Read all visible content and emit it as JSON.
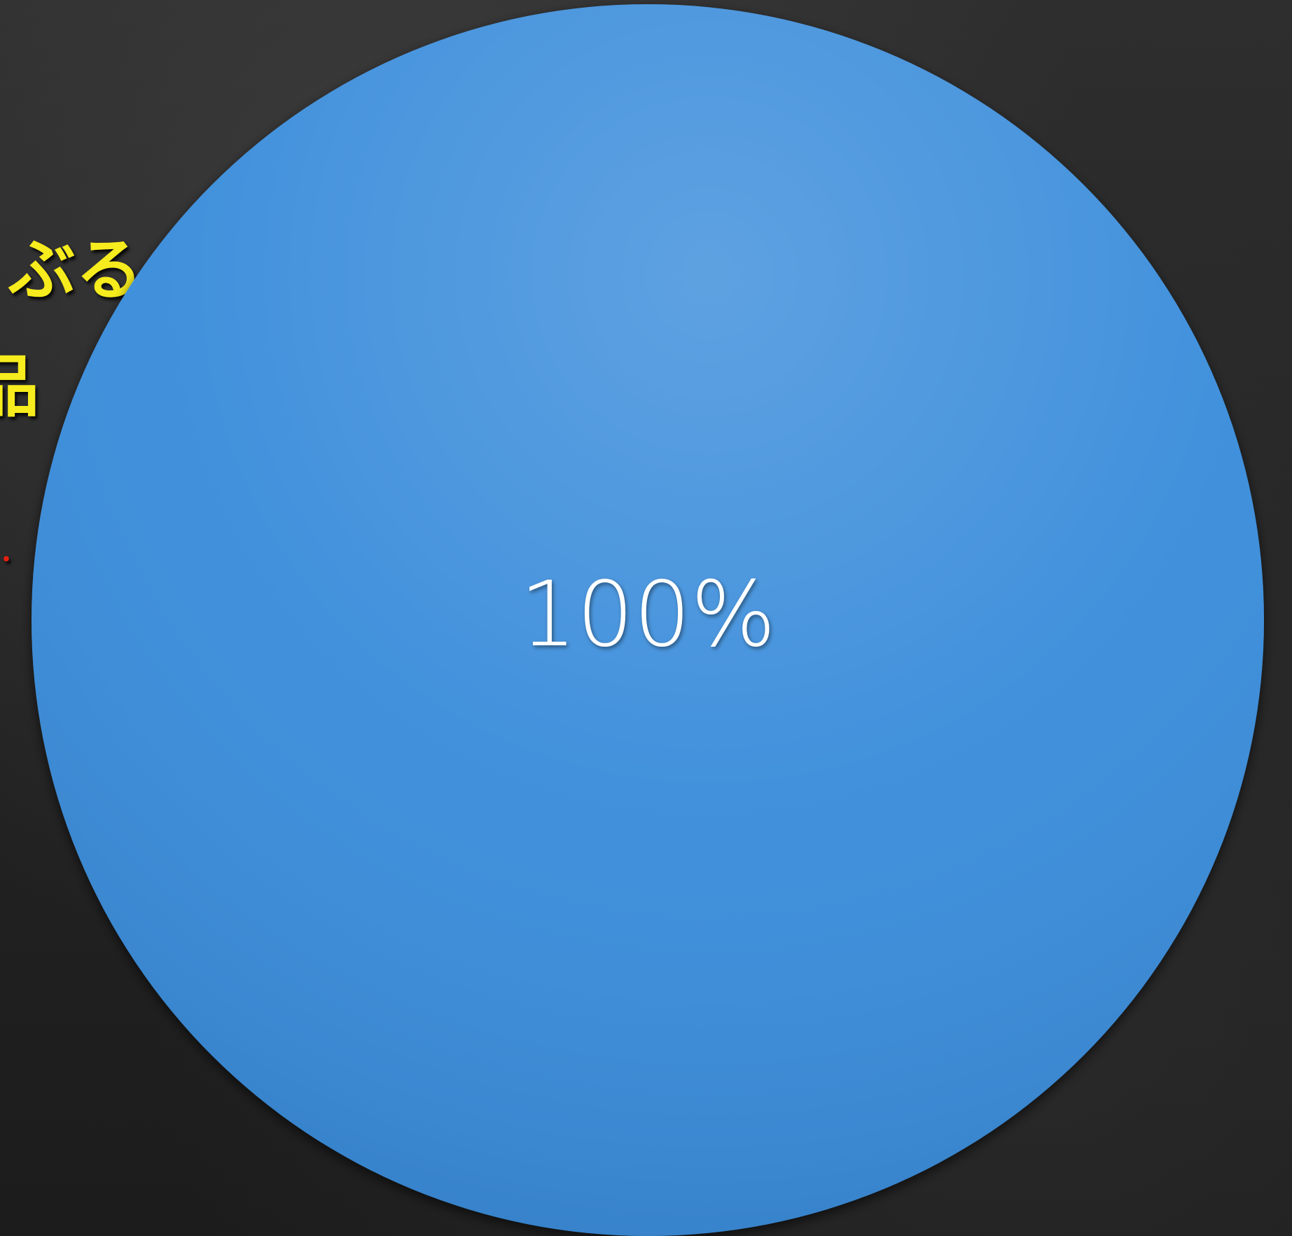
{
  "side_text": {
    "line1": "ぶる",
    "line2": "品",
    "line3": "・",
    "line1_color": "#f7ec1d",
    "line2_color": "#f7ec1d",
    "line3_color": "#e8200e"
  },
  "chart_data": {
    "type": "pie",
    "slices": [
      {
        "value": 100,
        "label": "100%",
        "color": "#3a8ddb"
      }
    ],
    "label_color": "#ffffff"
  }
}
